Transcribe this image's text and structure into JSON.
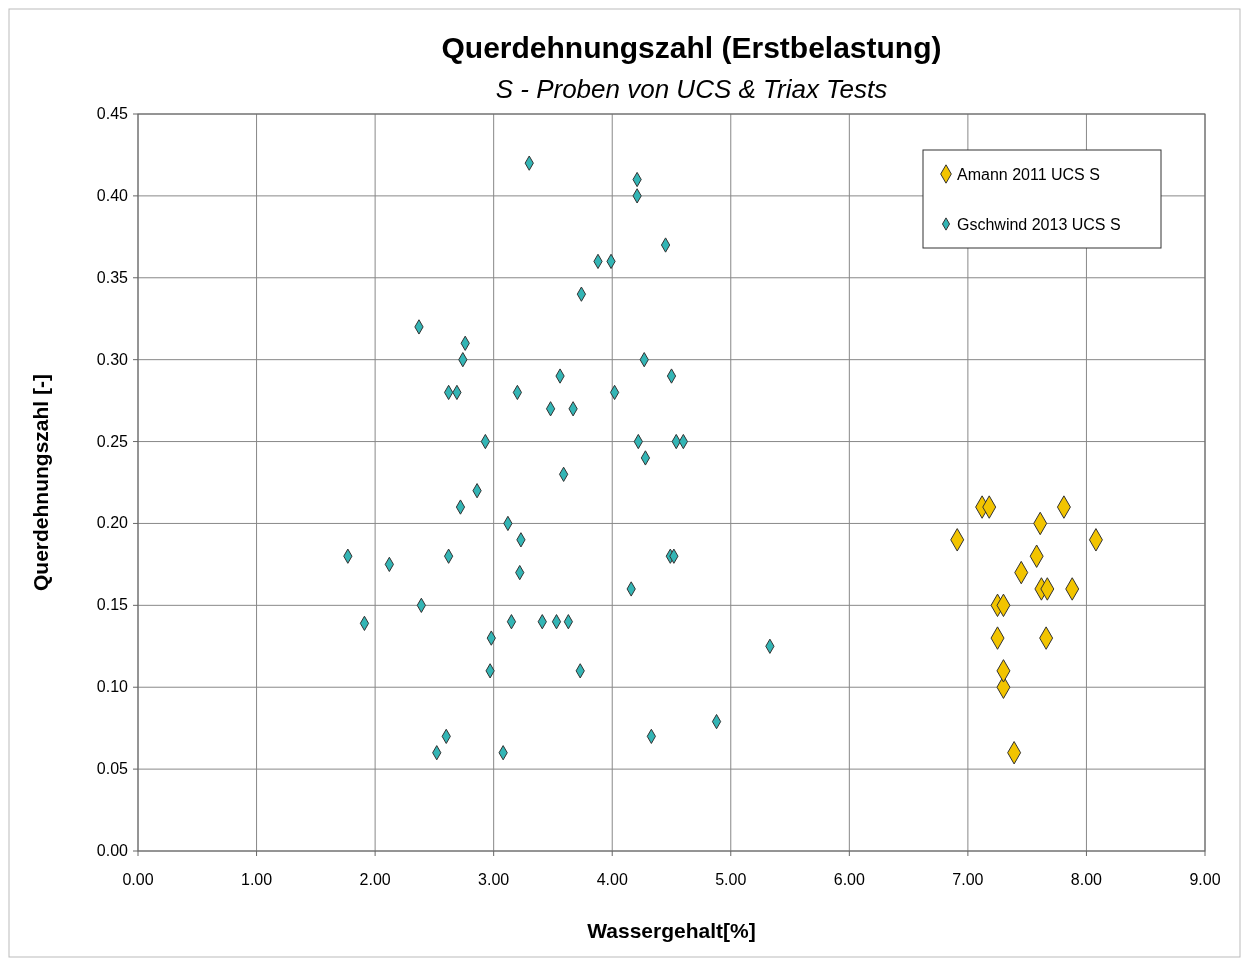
{
  "chart_data": {
    "type": "scatter",
    "title": "Querdehnungszahl (Erstbelastung)",
    "subtitle": "S - Proben von UCS & Triax Tests",
    "xlabel": "Wassergehalt[%]",
    "ylabel": "Querdehnungszahl [-]",
    "xlim": [
      0,
      9
    ],
    "ylim": [
      0,
      0.45
    ],
    "xticks": [
      {
        "value": 0,
        "label": "0.00"
      },
      {
        "value": 1,
        "label": "1.00"
      },
      {
        "value": 2,
        "label": "2.00"
      },
      {
        "value": 3,
        "label": "3.00"
      },
      {
        "value": 4,
        "label": "4.00"
      },
      {
        "value": 5,
        "label": "5.00"
      },
      {
        "value": 6,
        "label": "6.00"
      },
      {
        "value": 7,
        "label": "7.00"
      },
      {
        "value": 8,
        "label": "8.00"
      },
      {
        "value": 9,
        "label": "9.00"
      }
    ],
    "yticks": [
      {
        "value": 0,
        "label": "0.00"
      },
      {
        "value": 0.05,
        "label": "0.05"
      },
      {
        "value": 0.1,
        "label": "0.10"
      },
      {
        "value": 0.15,
        "label": "0.15"
      },
      {
        "value": 0.2,
        "label": "0.20"
      },
      {
        "value": 0.25,
        "label": "0.25"
      },
      {
        "value": 0.3,
        "label": "0.30"
      },
      {
        "value": 0.35,
        "label": "0.35"
      },
      {
        "value": 0.4,
        "label": "0.40"
      },
      {
        "value": 0.45,
        "label": "0.45"
      }
    ],
    "grid": true,
    "legend": "top right",
    "marker": "diamond",
    "series": [
      {
        "name": "Amann 2011 UCS S",
        "color": "#f2c400",
        "x": [
          7.39,
          7.3,
          7.3,
          7.25,
          7.66,
          7.25,
          7.3,
          7.88,
          7.62,
          7.67,
          7.45,
          7.58,
          6.91,
          8.08,
          7.61,
          7.12,
          7.18,
          7.81
        ],
        "values": [
          0.06,
          0.1,
          0.11,
          0.13,
          0.13,
          0.15,
          0.15,
          0.16,
          0.16,
          0.16,
          0.17,
          0.18,
          0.19,
          0.19,
          0.2,
          0.21,
          0.21,
          0.21
        ]
      },
      {
        "name": "Gschwind 2013 UCS S",
        "color": "#33b5b5",
        "x": [
          3.3,
          4.21,
          4.21,
          4.45,
          3.88,
          3.99,
          3.74,
          2.37,
          2.76,
          2.74,
          4.27,
          3.56,
          4.5,
          2.62,
          2.69,
          3.2,
          4.02,
          3.48,
          3.67,
          2.93,
          4.22,
          4.54,
          4.6,
          4.28,
          3.59,
          2.86,
          2.72,
          3.12,
          1.77,
          2.62,
          4.49,
          4.52,
          3.23,
          2.12,
          3.22,
          4.16,
          2.39,
          1.91,
          3.15,
          3.41,
          3.53,
          3.63,
          5.33,
          2.98,
          2.97,
          3.73,
          4.88,
          2.6,
          4.33,
          2.52,
          3.08
        ],
        "values": [
          0.42,
          0.41,
          0.4,
          0.37,
          0.36,
          0.36,
          0.34,
          0.32,
          0.31,
          0.3,
          0.3,
          0.29,
          0.29,
          0.28,
          0.28,
          0.28,
          0.28,
          0.27,
          0.27,
          0.25,
          0.25,
          0.25,
          0.25,
          0.24,
          0.23,
          0.22,
          0.21,
          0.2,
          0.18,
          0.18,
          0.18,
          0.18,
          0.19,
          0.175,
          0.17,
          0.16,
          0.15,
          0.139,
          0.14,
          0.14,
          0.14,
          0.14,
          0.125,
          0.13,
          0.11,
          0.11,
          0.079,
          0.07,
          0.07,
          0.06,
          0.06
        ]
      }
    ]
  }
}
